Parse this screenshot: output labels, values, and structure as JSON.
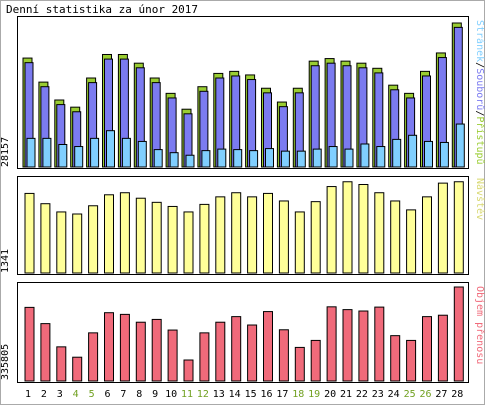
{
  "title": "Denní statistika za únor 2017",
  "colors": {
    "hits": "#9acd32",
    "files": "#7b7bf0",
    "pages": "#80cfff",
    "visits": "#ffff99",
    "volume": "#f06a7a",
    "weekend_label": "#70a020",
    "weekday_label": "#000000"
  },
  "legend": {
    "top_series": [
      {
        "name": "Přístupů",
        "color": "#9acd32"
      },
      {
        "name": "Souborů",
        "color": "#7b7bf0"
      },
      {
        "name": "Stránek",
        "color": "#80cfff"
      }
    ],
    "middle_series": "Návštěv",
    "bottom_series": "Objem přenosu",
    "separator": "/"
  },
  "y_max_labels": {
    "top": "28157",
    "middle": "1341",
    "bottom": "335805"
  },
  "chart_data": [
    {
      "type": "bar",
      "title": "Denní statistika za únor 2017",
      "categories": [
        "1",
        "2",
        "3",
        "4",
        "5",
        "6",
        "7",
        "8",
        "9",
        "10",
        "11",
        "12",
        "13",
        "14",
        "15",
        "16",
        "17",
        "18",
        "19",
        "20",
        "21",
        "22",
        "23",
        "24",
        "25",
        "26",
        "27",
        "28"
      ],
      "weekend": [
        false,
        false,
        false,
        true,
        true,
        false,
        false,
        false,
        false,
        false,
        true,
        true,
        false,
        false,
        false,
        false,
        false,
        true,
        true,
        false,
        false,
        false,
        false,
        false,
        true,
        true,
        false,
        false
      ],
      "ylim": [
        0,
        28157
      ],
      "series": [
        {
          "name": "Přístupů",
          "values": [
            21300,
            16600,
            13100,
            11700,
            17400,
            22000,
            22000,
            20300,
            17400,
            14400,
            11300,
            15700,
            18300,
            18700,
            18000,
            15400,
            12700,
            15400,
            20700,
            21200,
            20700,
            20300,
            19300,
            16000,
            14400,
            18700,
            22300,
            28157
          ]
        },
        {
          "name": "Souborů",
          "values": [
            20400,
            15700,
            12200,
            10800,
            16500,
            21100,
            21100,
            19400,
            16500,
            13500,
            10400,
            14800,
            17400,
            17800,
            17100,
            14500,
            11800,
            14500,
            19800,
            20300,
            19800,
            19400,
            18400,
            15100,
            13500,
            17800,
            21400,
            27300
          ]
        },
        {
          "name": "Stránek",
          "values": [
            5600,
            5600,
            4400,
            4000,
            5600,
            7100,
            5600,
            5000,
            3400,
            2800,
            2300,
            3200,
            3500,
            3400,
            3200,
            3600,
            3100,
            3100,
            3500,
            4000,
            3500,
            4500,
            4000,
            5400,
            6200,
            5000,
            4800,
            8400
          ]
        }
      ]
    },
    {
      "type": "bar",
      "categories": [
        "1",
        "2",
        "3",
        "4",
        "5",
        "6",
        "7",
        "8",
        "9",
        "10",
        "11",
        "12",
        "13",
        "14",
        "15",
        "16",
        "17",
        "18",
        "19",
        "20",
        "21",
        "22",
        "23",
        "24",
        "25",
        "26",
        "27",
        "28"
      ],
      "ylim": [
        0,
        1341
      ],
      "series": [
        {
          "name": "Návštěv",
          "values": [
            1160,
            1010,
            890,
            860,
            980,
            1140,
            1170,
            1090,
            1030,
            970,
            890,
            1000,
            1110,
            1170,
            1110,
            1160,
            1050,
            890,
            1040,
            1260,
            1330,
            1290,
            1170,
            1050,
            920,
            1110,
            1310,
            1330
          ]
        }
      ]
    },
    {
      "type": "bar",
      "categories": [
        "1",
        "2",
        "3",
        "4",
        "5",
        "6",
        "7",
        "8",
        "9",
        "10",
        "11",
        "12",
        "13",
        "14",
        "15",
        "16",
        "17",
        "18",
        "19",
        "20",
        "21",
        "22",
        "23",
        "24",
        "25",
        "26",
        "27",
        "28"
      ],
      "ylim": [
        0,
        335805
      ],
      "series": [
        {
          "name": "Objem přenosu",
          "values": [
            263000,
            205000,
            122000,
            85000,
            172000,
            244000,
            238000,
            210000,
            220000,
            182000,
            75000,
            172000,
            210000,
            230000,
            200000,
            248000,
            183000,
            120000,
            145000,
            265000,
            255000,
            250000,
            264000,
            162000,
            145000,
            230000,
            235000,
            335805
          ]
        }
      ]
    }
  ]
}
